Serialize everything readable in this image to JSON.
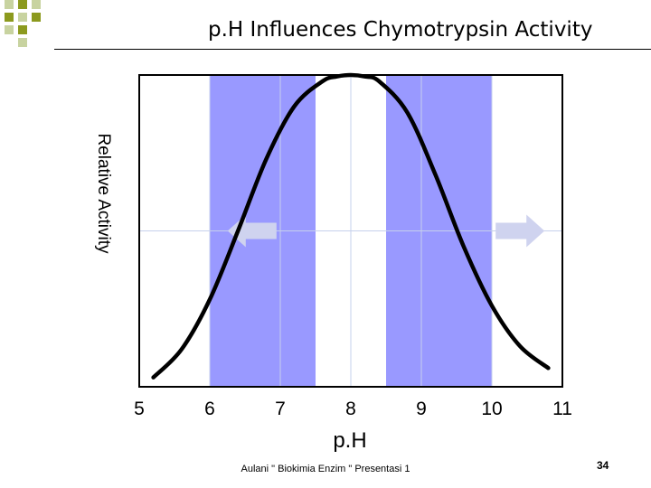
{
  "chart_data": {
    "type": "line",
    "title": "p.H Influences Chymotrypsin Activity",
    "xlabel": "p.H",
    "ylabel": "Relative Activity",
    "xlim": [
      5,
      11
    ],
    "ylim": [
      0,
      1
    ],
    "x_ticks": [
      5,
      6,
      7,
      8,
      9,
      10,
      11
    ],
    "grid": true,
    "shaded_ranges": [
      [
        6,
        7.5
      ],
      [
        8.5,
        10
      ]
    ],
    "arrows": [
      {
        "direction": "left",
        "x": 6.6,
        "y": 0.5
      },
      {
        "direction": "right",
        "x": 10.4,
        "y": 0.5
      }
    ],
    "series": [
      {
        "x": [
          5.2,
          5.6,
          6.0,
          6.4,
          6.8,
          7.2,
          7.6,
          7.8,
          8.0,
          8.2,
          8.4,
          8.8,
          9.2,
          9.6,
          10.0,
          10.4,
          10.8
        ],
        "values": [
          0.03,
          0.12,
          0.28,
          0.5,
          0.73,
          0.9,
          0.98,
          0.995,
          1.0,
          0.995,
          0.98,
          0.88,
          0.68,
          0.45,
          0.26,
          0.13,
          0.06
        ]
      }
    ]
  },
  "footer": "Aulani \" Biokimia Enzim \" Presentasi 1",
  "page_number": "34",
  "colors": {
    "band": "#9999ff",
    "grid": "#c6d0ec",
    "arrow": "#cfd3ef",
    "deco_dark": "#8c9a1e",
    "deco_light": "#c8d3a0"
  }
}
